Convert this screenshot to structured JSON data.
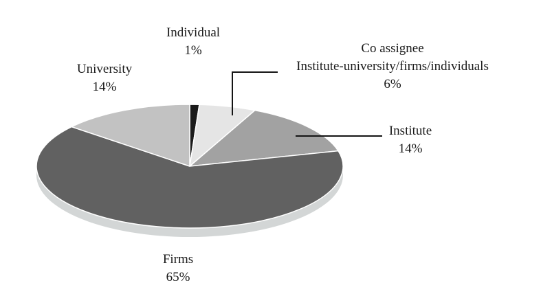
{
  "chart_data": {
    "type": "pie",
    "title": "",
    "effect": "3d",
    "legend_position": "none",
    "label_style": "outside-callouts",
    "background": "#ffffff",
    "rim_color": "#d3d6d6",
    "separator_color": "#ffffff",
    "leader_line_color": "#141414",
    "text_color": "#1a1a1a",
    "slices": [
      {
        "name_lines": [
          "Individual"
        ],
        "pct": 1,
        "pct_label": "1%",
        "color": "#1b1b1b"
      },
      {
        "name_lines": [
          "Co assignee",
          "Institute-university/firms/individuals"
        ],
        "pct": 6,
        "pct_label": "6%",
        "color": "#e5e5e5"
      },
      {
        "name_lines": [
          "Institute"
        ],
        "pct": 14,
        "pct_label": "14%",
        "color": "#a2a2a2"
      },
      {
        "name_lines": [
          "Firms"
        ],
        "pct": 65,
        "pct_label": "65%",
        "color": "#616161"
      },
      {
        "name_lines": [
          "University"
        ],
        "pct": 14,
        "pct_label": "14%",
        "color": "#c2c2c2"
      }
    ]
  }
}
